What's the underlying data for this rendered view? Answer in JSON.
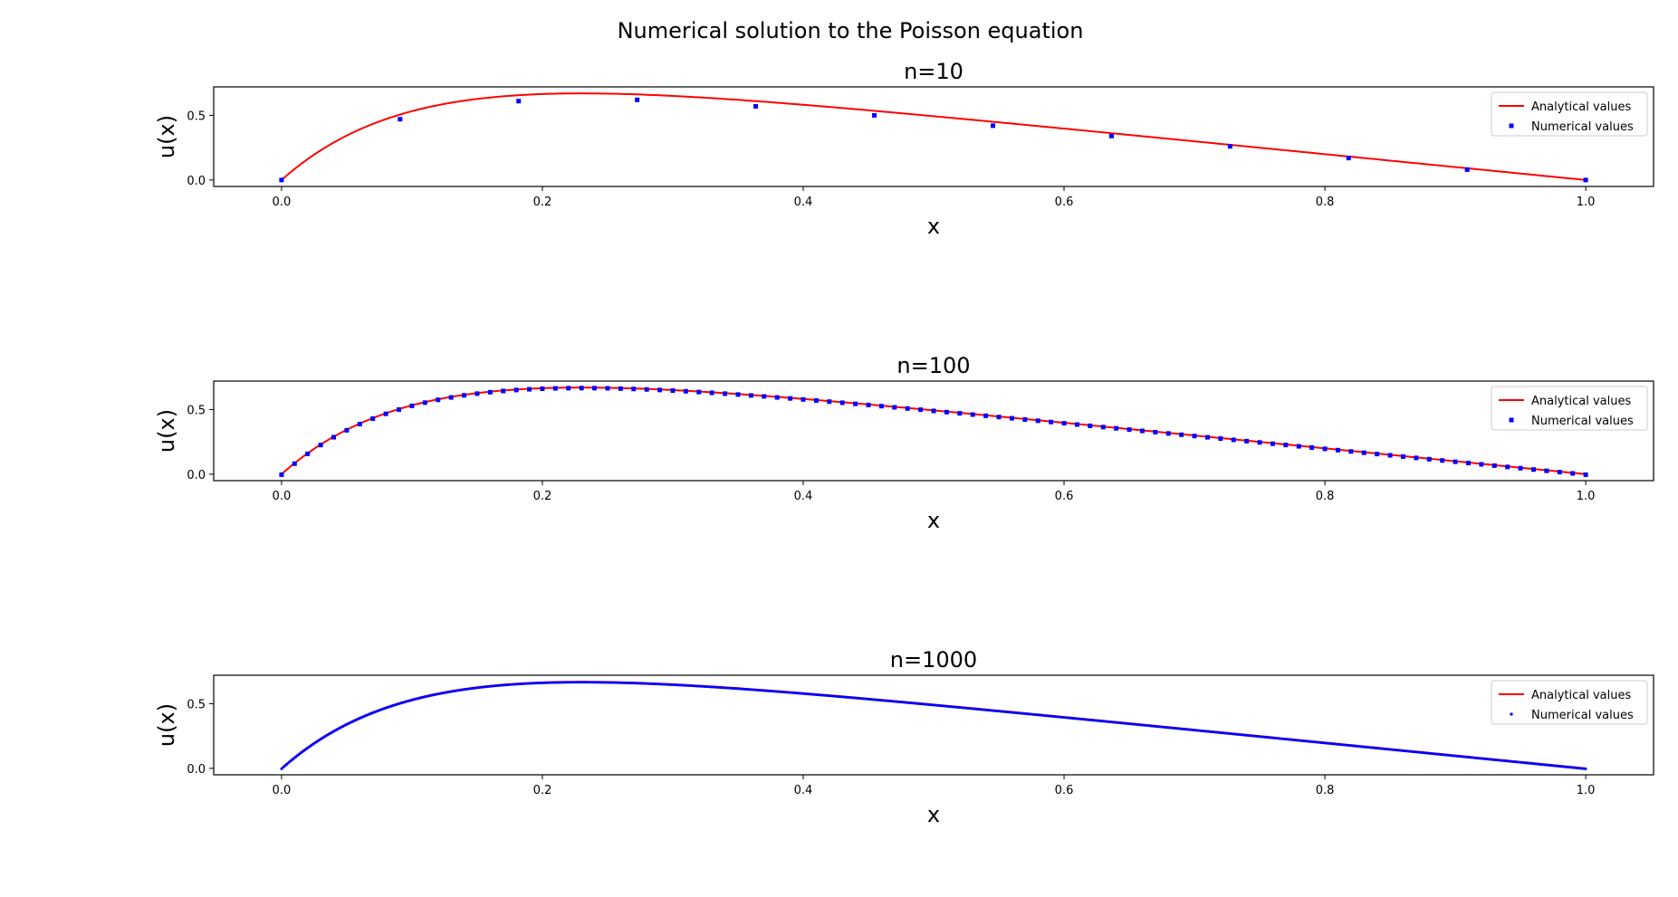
{
  "figure": {
    "title": "Numerical solution to the Poisson equation"
  },
  "chart_data": [
    {
      "type": "line",
      "title": "n=10",
      "xlabel": "x",
      "ylabel": "u(x)",
      "xlim": [
        -0.052,
        1.052
      ],
      "ylim": [
        -0.05,
        0.72
      ],
      "xticks": [
        "0.0",
        "0.2",
        "0.4",
        "0.6",
        "0.8",
        "1.0"
      ],
      "yticks": [
        "0.0",
        "0.5"
      ],
      "legend_position": "top-right",
      "n": 10,
      "series": [
        {
          "name": "Analytical values",
          "kind": "line",
          "color": "#ff0000",
          "function": "u(x) = 1 - (1 - e^-10) x - e^(-10x)"
        },
        {
          "name": "Numerical values",
          "kind": "scatter",
          "color": "#0000ff",
          "x": [
            0.0,
            0.0909,
            0.1818,
            0.2727,
            0.3636,
            0.4545,
            0.5455,
            0.6364,
            0.7273,
            0.8182,
            0.9091,
            1.0
          ],
          "y": [
            0.0,
            0.47,
            0.61,
            0.62,
            0.57,
            0.5,
            0.42,
            0.34,
            0.26,
            0.17,
            0.08,
            0.0
          ]
        }
      ]
    },
    {
      "type": "line",
      "title": "n=100",
      "xlabel": "x",
      "ylabel": "u(x)",
      "xlim": [
        -0.052,
        1.052
      ],
      "ylim": [
        -0.05,
        0.72
      ],
      "xticks": [
        "0.0",
        "0.2",
        "0.4",
        "0.6",
        "0.8",
        "1.0"
      ],
      "yticks": [
        "0.0",
        "0.5"
      ],
      "legend_position": "top-right",
      "n": 100,
      "series": [
        {
          "name": "Analytical values",
          "kind": "line",
          "color": "#ff0000",
          "function": "u(x) = 1 - (1 - e^-10) x - e^(-10x)"
        },
        {
          "name": "Numerical values",
          "kind": "scatter",
          "color": "#0000ff",
          "points": 101,
          "x_range": [
            0.0,
            1.0
          ]
        }
      ]
    },
    {
      "type": "line",
      "title": "n=1000",
      "xlabel": "x",
      "ylabel": "u(x)",
      "xlim": [
        -0.052,
        1.052
      ],
      "ylim": [
        -0.05,
        0.72
      ],
      "xticks": [
        "0.0",
        "0.2",
        "0.4",
        "0.6",
        "0.8",
        "1.0"
      ],
      "yticks": [
        "0.0",
        "0.5"
      ],
      "legend_position": "top-right",
      "n": 1000,
      "series": [
        {
          "name": "Analytical values",
          "kind": "line",
          "color": "#ff0000",
          "function": "u(x) = 1 - (1 - e^-10) x - e^(-10x)"
        },
        {
          "name": "Numerical values",
          "kind": "scatter",
          "color": "#0000ff",
          "points": 1001,
          "x_range": [
            0.0,
            1.0
          ]
        }
      ]
    }
  ]
}
